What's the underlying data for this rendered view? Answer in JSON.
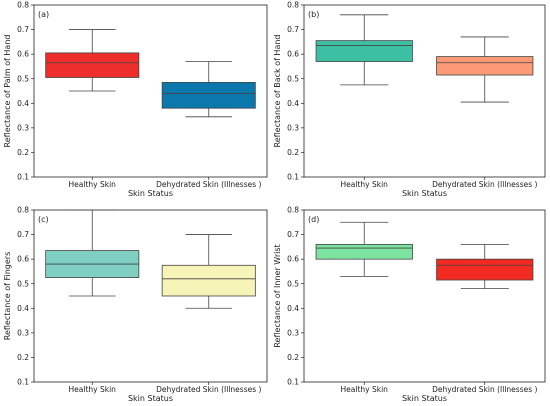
{
  "chart_data": [
    {
      "type": "box",
      "panel_label": "(a)",
      "categories": [
        "Healthy Skin",
        "Dehydrated Skin (Illnesses )"
      ],
      "xlabel": "Skin Status",
      "ylabel": "Reflectance of Palm of Hand",
      "ylim": [
        0.1,
        0.8
      ],
      "yticks": [
        "0.1",
        "0.2",
        "0.3",
        "0.4",
        "0.5",
        "0.6",
        "0.7",
        "0.8"
      ],
      "grid": false,
      "boxes": [
        {
          "category": "Healthy Skin",
          "color": "#ee2d2d",
          "whisker_low": 0.45,
          "q1": 0.505,
          "median": 0.565,
          "q3": 0.605,
          "whisker_high": 0.7
        },
        {
          "category": "Dehydrated Skin (Illnesses )",
          "color": "#0a78ad",
          "whisker_low": 0.345,
          "q1": 0.38,
          "median": 0.44,
          "q3": 0.485,
          "whisker_high": 0.57
        }
      ]
    },
    {
      "type": "box",
      "panel_label": "(b)",
      "categories": [
        "Healthy Skin",
        "Dehydrated Skin (Illnesses )"
      ],
      "xlabel": "Skin Status",
      "ylabel": "Reflectance of Back of Hand",
      "ylim": [
        0.1,
        0.8
      ],
      "yticks": [
        "0.1",
        "0.2",
        "0.3",
        "0.4",
        "0.5",
        "0.6",
        "0.7",
        "0.8"
      ],
      "grid": false,
      "boxes": [
        {
          "category": "Healthy Skin",
          "color": "#3cbfa2",
          "whisker_low": 0.475,
          "q1": 0.57,
          "median": 0.635,
          "q3": 0.655,
          "whisker_high": 0.76
        },
        {
          "category": "Dehydrated Skin (Illnesses )",
          "color": "#fb9a74",
          "whisker_low": 0.405,
          "q1": 0.515,
          "median": 0.565,
          "q3": 0.59,
          "whisker_high": 0.67
        }
      ]
    },
    {
      "type": "box",
      "panel_label": "(c)",
      "categories": [
        "Healthy Skin",
        "Dehydrated Skin (Illnesses )"
      ],
      "xlabel": "Skin Status",
      "ylabel": "Reflectance of Fingers",
      "ylim": [
        0.1,
        0.8
      ],
      "yticks": [
        "0.1",
        "0.2",
        "0.3",
        "0.4",
        "0.5",
        "0.6",
        "0.7",
        "0.8"
      ],
      "grid": false,
      "boxes": [
        {
          "category": "Healthy Skin",
          "color": "#80cfc3",
          "whisker_low": 0.45,
          "q1": 0.525,
          "median": 0.58,
          "q3": 0.635,
          "whisker_high": 0.8
        },
        {
          "category": "Dehydrated Skin (Illnesses )",
          "color": "#f6f4b6",
          "whisker_low": 0.4,
          "q1": 0.45,
          "median": 0.52,
          "q3": 0.575,
          "whisker_high": 0.7
        }
      ]
    },
    {
      "type": "box",
      "panel_label": "(d)",
      "categories": [
        "Healthy Skin",
        "Dehydrated Skin (Illnesses )"
      ],
      "xlabel": "Skin Status",
      "ylabel": "Reflectance of Inner Wrist",
      "ylim": [
        0.1,
        0.8
      ],
      "yticks": [
        "0.1",
        "0.2",
        "0.3",
        "0.4",
        "0.5",
        "0.6",
        "0.7",
        "0.8"
      ],
      "grid": false,
      "boxes": [
        {
          "category": "Healthy Skin",
          "color": "#7de3a0",
          "whisker_low": 0.53,
          "q1": 0.6,
          "median": 0.645,
          "q3": 0.66,
          "whisker_high": 0.75
        },
        {
          "category": "Dehydrated Skin (Illnesses )",
          "color": "#f22a22",
          "whisker_low": 0.48,
          "q1": 0.515,
          "median": 0.575,
          "q3": 0.6,
          "whisker_high": 0.66
        }
      ]
    }
  ]
}
